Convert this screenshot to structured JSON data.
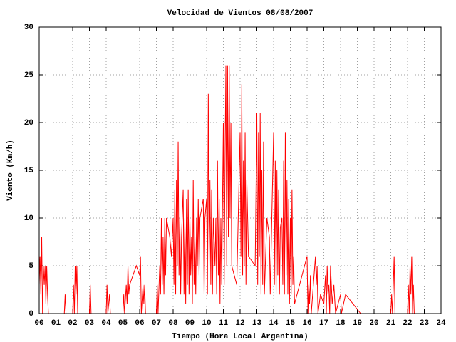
{
  "chart_data": {
    "type": "line",
    "title": "Velocidad de Vientos 08/08/2007",
    "x_label": "Tiempo (Hora Local Argentina)",
    "y_label": "Viento (Km/h)",
    "xlim": [
      0,
      24
    ],
    "ylim": [
      0,
      30
    ],
    "xticks": [
      {
        "value": 0,
        "label": "00"
      },
      {
        "value": 1,
        "label": "01"
      },
      {
        "value": 2,
        "label": "02"
      },
      {
        "value": 3,
        "label": "03"
      },
      {
        "value": 4,
        "label": "04"
      },
      {
        "value": 5,
        "label": "05"
      },
      {
        "value": 6,
        "label": "06"
      },
      {
        "value": 7,
        "label": "07"
      },
      {
        "value": 8,
        "label": "08"
      },
      {
        "value": 9,
        "label": "09"
      },
      10,
      11,
      12,
      13,
      14,
      15,
      16,
      17,
      18,
      19,
      20,
      21,
      22,
      23,
      24
    ],
    "yticks": [
      0,
      5,
      10,
      15,
      20,
      25,
      30
    ],
    "grid": true,
    "series": [
      {
        "color": "#ff0000",
        "x": [
          0,
          0.05,
          0.1,
          0.15,
          0.2,
          0.25,
          0.3,
          0.35,
          0.4,
          0.45,
          0.5,
          0.55,
          1.5,
          1.55,
          1.6,
          2,
          2.05,
          2.1,
          2.15,
          2.2,
          2.25,
          2.3,
          3,
          3.05,
          3.1,
          4,
          4.05,
          4.1,
          4.2,
          4.25,
          5,
          5.05,
          5.1,
          5.2,
          5.25,
          5.3,
          5.35,
          5.4,
          5.8,
          6,
          6.05,
          6.1,
          6.2,
          6.25,
          6.3,
          6.35,
          7,
          7.05,
          7.1,
          7.2,
          7.25,
          7.3,
          7.35,
          7.4,
          7.45,
          7.5,
          7.55,
          7.6,
          7.8,
          7.9,
          8,
          8.05,
          8.1,
          8.15,
          8.2,
          8.25,
          8.3,
          8.35,
          8.4,
          8.45,
          8.5,
          8.6,
          8.65,
          8.7,
          8.75,
          8.8,
          8.85,
          8.9,
          8.95,
          9,
          9.05,
          9.1,
          9.15,
          9.2,
          9.25,
          9.3,
          9.35,
          9.4,
          9.45,
          9.5,
          9.55,
          9.6,
          9.8,
          9.85,
          9.9,
          10,
          10.05,
          10.1,
          10.15,
          10.2,
          10.25,
          10.3,
          10.35,
          10.4,
          10.5,
          10.55,
          10.6,
          10.65,
          10.7,
          10.75,
          10.8,
          10.85,
          10.9,
          11,
          11.05,
          11.1,
          11.15,
          11.2,
          11.25,
          11.3,
          11.35,
          11.4,
          11.45,
          11.5,
          11.8,
          12,
          12.05,
          12.1,
          12.15,
          12.2,
          12.25,
          12.3,
          12.35,
          12.4,
          12.5,
          12.9,
          13,
          13.05,
          13.1,
          13.15,
          13.2,
          13.25,
          13.3,
          13.35,
          13.4,
          13.45,
          13.6,
          13.75,
          13.8,
          14,
          14.05,
          14.1,
          14.15,
          14.2,
          14.25,
          14.3,
          14.35,
          14.4,
          14.5,
          14.55,
          14.6,
          14.65,
          14.7,
          14.75,
          14.8,
          14.85,
          14.9,
          14.95,
          15,
          15.05,
          15.1,
          15.15,
          15.2,
          15.25,
          16,
          16.05,
          16.1,
          16.15,
          16.2,
          16.25,
          16.5,
          16.55,
          16.6,
          16.65,
          16.8,
          17,
          17.1,
          17.15,
          17.2,
          17.25,
          17.3,
          17.35,
          17.4,
          17.5,
          17.6,
          17.7,
          18,
          18.05,
          18.3,
          19.2,
          21,
          21.05,
          21.1,
          21.2,
          21.25,
          22,
          22.05,
          22.1,
          22.15,
          22.2,
          22.25,
          22.3,
          22.35,
          22.4
        ],
        "values": [
          3,
          6,
          2,
          8,
          0,
          5,
          3,
          5,
          1,
          5,
          2,
          0,
          0,
          2,
          0,
          0,
          3,
          0,
          5,
          2,
          5,
          0,
          0,
          3,
          0,
          0,
          3,
          0,
          2,
          0,
          0,
          2,
          0,
          3,
          1,
          5,
          2,
          3,
          5,
          4,
          6,
          0,
          3,
          1,
          3,
          0,
          0,
          3,
          0,
          5,
          2,
          10,
          3,
          8,
          2,
          10,
          4,
          10,
          8,
          6,
          10,
          3,
          13,
          2,
          14,
          5,
          18,
          4,
          10,
          2,
          8,
          13,
          2,
          10,
          1,
          12,
          3,
          13,
          2,
          10,
          4,
          8,
          1,
          14,
          3,
          8,
          2,
          10,
          5,
          12,
          4,
          10,
          12,
          2,
          10,
          12,
          2,
          23,
          5,
          14,
          3,
          13,
          2,
          10,
          5,
          10,
          2,
          16,
          4,
          12,
          1,
          10,
          3,
          20,
          3,
          16,
          26,
          5,
          26,
          8,
          26,
          10,
          20,
          5,
          3,
          19,
          6,
          24,
          4,
          16,
          5,
          19,
          3,
          14,
          6,
          5,
          21,
          3,
          19,
          6,
          21,
          2,
          15,
          3,
          18,
          2,
          10,
          8,
          2,
          19,
          3,
          16,
          2,
          15,
          4,
          13,
          2,
          9,
          10,
          3,
          16,
          2,
          19,
          4,
          14,
          2,
          12,
          1,
          10,
          2,
          13,
          3,
          6,
          1,
          6,
          0,
          3,
          1,
          4,
          0,
          6,
          3,
          5,
          0,
          2,
          1,
          4,
          0,
          5,
          2,
          3,
          0,
          5,
          1,
          3,
          0,
          2,
          0,
          2,
          0,
          0,
          2,
          0,
          6,
          0,
          0,
          3,
          0,
          5,
          2,
          6,
          0,
          3,
          0
        ]
      }
    ]
  }
}
